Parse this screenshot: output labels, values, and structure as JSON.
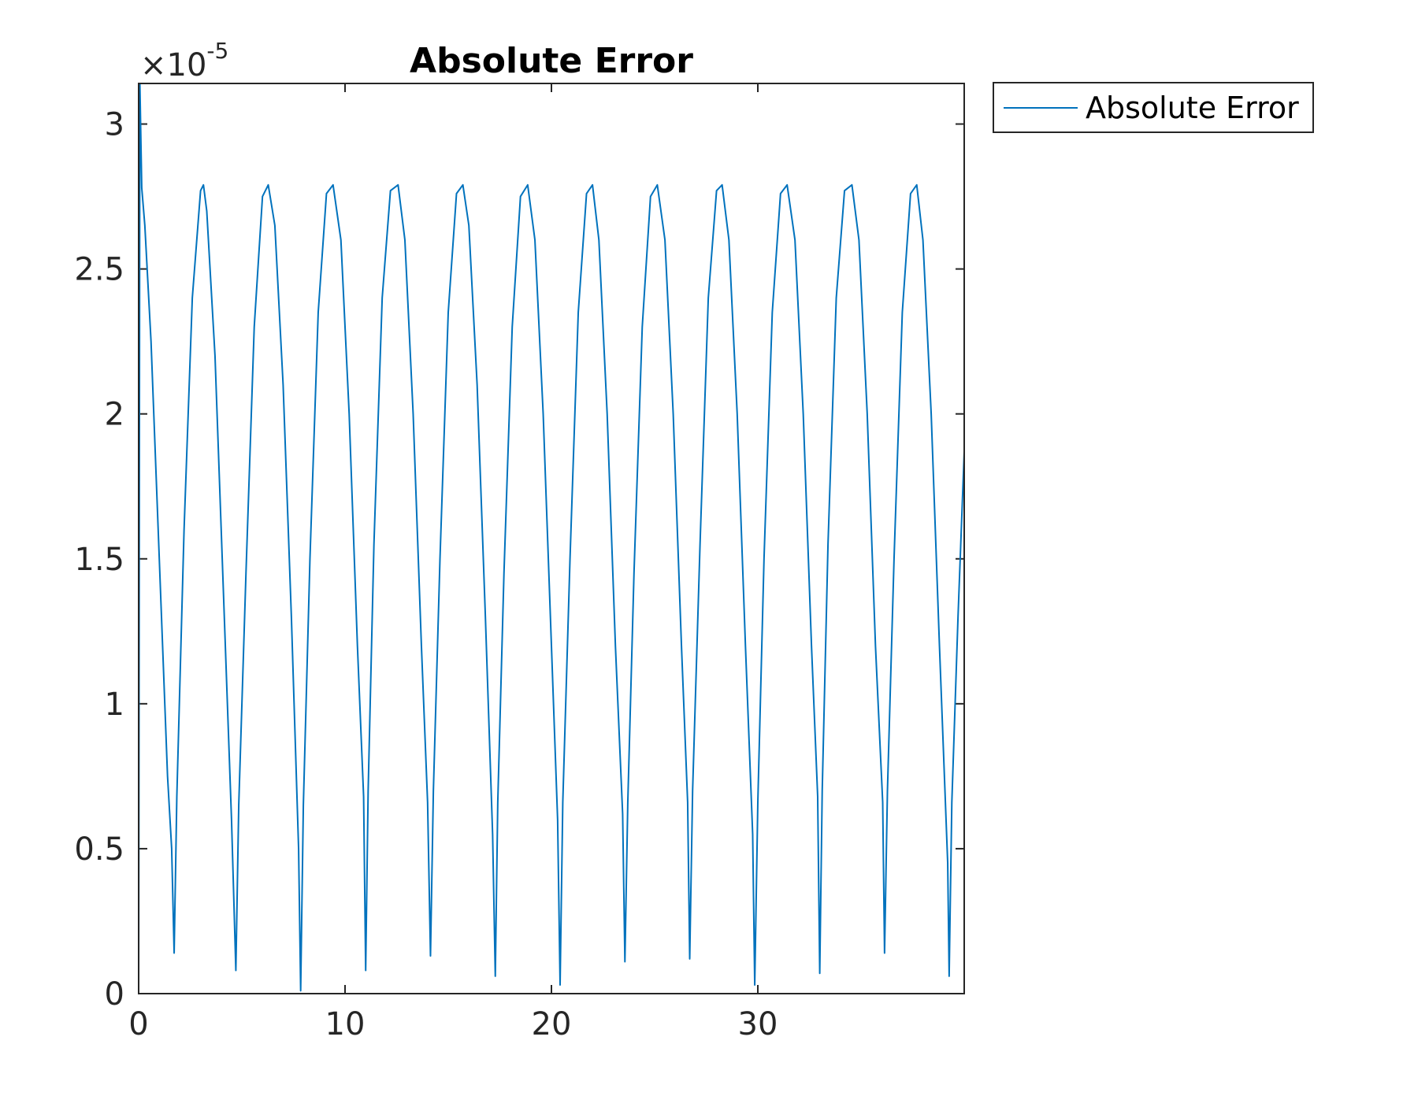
{
  "chart_data": {
    "type": "line",
    "title": "Absolute Error",
    "xlabel": "",
    "ylabel": "",
    "xlim": [
      0,
      40
    ],
    "ylim": [
      0,
      3.14
    ],
    "y_exponent_label": {
      "base": "×10",
      "exponent": "-5"
    },
    "x_ticks": [
      0,
      10,
      20,
      30
    ],
    "x_tick_labels": [
      "0",
      "10",
      "20",
      "30"
    ],
    "y_ticks": [
      0,
      0.5,
      1,
      1.5,
      2,
      2.5,
      3
    ],
    "y_tick_labels": [
      "0",
      "0.5",
      "1",
      "1.5",
      "2",
      "2.5",
      "3"
    ],
    "grid": false,
    "legend": {
      "position": "outside-top-right",
      "entries": [
        "Absolute Error"
      ]
    },
    "series": [
      {
        "name": "Absolute Error",
        "color": "#0072BD",
        "x": [
          0,
          0.06,
          0.15,
          0.3,
          0.6,
          1.0,
          1.4,
          1.6,
          1.72,
          1.85,
          2.2,
          2.6,
          3.0,
          3.14,
          3.3,
          3.7,
          4.1,
          4.5,
          4.71,
          4.85,
          5.2,
          5.6,
          6.0,
          6.28,
          6.6,
          7.0,
          7.4,
          7.75,
          7.85,
          7.98,
          8.3,
          8.7,
          9.1,
          9.42,
          9.8,
          10.2,
          10.6,
          10.9,
          11.0,
          11.12,
          11.4,
          11.8,
          12.2,
          12.57,
          12.9,
          13.3,
          13.7,
          14.0,
          14.14,
          14.28,
          14.6,
          15.0,
          15.4,
          15.71,
          16.0,
          16.4,
          16.8,
          17.15,
          17.28,
          17.4,
          17.7,
          18.1,
          18.5,
          18.85,
          19.2,
          19.6,
          20.0,
          20.3,
          20.42,
          20.55,
          20.9,
          21.3,
          21.7,
          21.99,
          22.3,
          22.7,
          23.1,
          23.45,
          23.56,
          23.7,
          24.0,
          24.4,
          24.8,
          25.13,
          25.5,
          25.9,
          26.3,
          26.6,
          26.7,
          26.84,
          27.2,
          27.6,
          28.0,
          28.27,
          28.6,
          29.0,
          29.4,
          29.75,
          29.85,
          30.0,
          30.3,
          30.7,
          31.1,
          31.42,
          31.8,
          32.2,
          32.6,
          32.9,
          33.0,
          33.12,
          33.4,
          33.8,
          34.2,
          34.56,
          34.9,
          35.3,
          35.7,
          36.05,
          36.14,
          36.28,
          36.6,
          37.0,
          37.4,
          37.7,
          38.0,
          38.4,
          38.8,
          39.2,
          39.27,
          39.4,
          39.7,
          40.0
        ],
        "y": [
          0,
          3.14,
          2.78,
          2.65,
          2.25,
          1.5,
          0.75,
          0.5,
          0.14,
          0.68,
          1.6,
          2.4,
          2.77,
          2.79,
          2.7,
          2.2,
          1.4,
          0.6,
          0.08,
          0.65,
          1.45,
          2.3,
          2.75,
          2.79,
          2.65,
          2.1,
          1.3,
          0.5,
          0.01,
          0.65,
          1.5,
          2.35,
          2.76,
          2.79,
          2.6,
          2.0,
          1.2,
          0.68,
          0.08,
          0.7,
          1.55,
          2.4,
          2.77,
          2.79,
          2.6,
          2.0,
          1.2,
          0.66,
          0.13,
          0.7,
          1.5,
          2.35,
          2.76,
          2.79,
          2.65,
          2.1,
          1.3,
          0.55,
          0.06,
          0.66,
          1.45,
          2.3,
          2.75,
          2.79,
          2.6,
          2.0,
          1.2,
          0.6,
          0.03,
          0.66,
          1.5,
          2.35,
          2.76,
          2.79,
          2.6,
          2.0,
          1.2,
          0.62,
          0.11,
          0.66,
          1.45,
          2.3,
          2.75,
          2.79,
          2.6,
          2.0,
          1.2,
          0.66,
          0.12,
          0.7,
          1.55,
          2.4,
          2.77,
          2.79,
          2.6,
          2.0,
          1.2,
          0.55,
          0.03,
          0.66,
          1.5,
          2.35,
          2.76,
          2.79,
          2.6,
          2.0,
          1.2,
          0.68,
          0.07,
          0.7,
          1.55,
          2.4,
          2.77,
          2.79,
          2.6,
          2.0,
          1.2,
          0.66,
          0.14,
          0.7,
          1.5,
          2.35,
          2.76,
          2.79,
          2.6,
          2.0,
          1.2,
          0.45,
          0.06,
          0.66,
          1.3,
          1.87
        ]
      }
    ]
  }
}
